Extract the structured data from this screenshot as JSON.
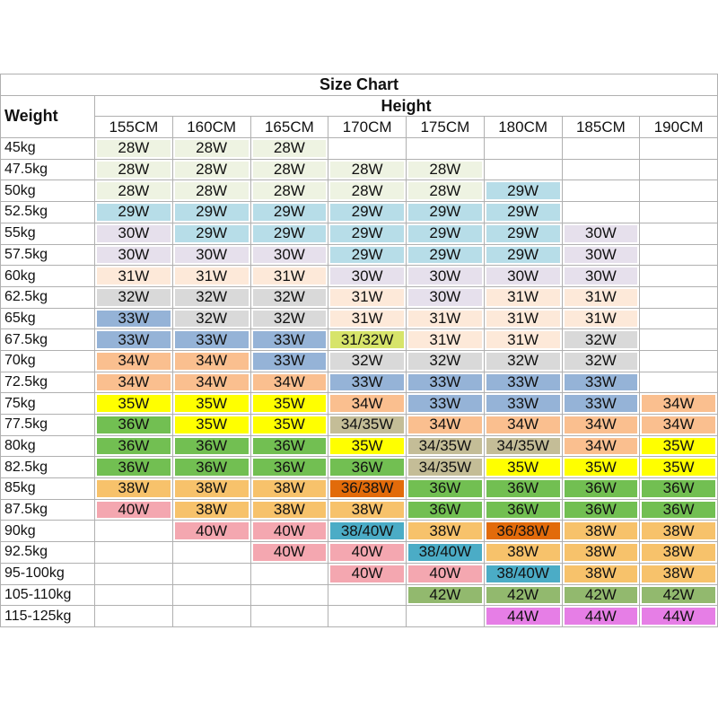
{
  "title": "Size Chart",
  "row_header": "Weight",
  "column_group": "Height",
  "columns": [
    "155CM",
    "160CM",
    "165CM",
    "170CM",
    "175CM",
    "180CM",
    "185CM",
    "190CM"
  ],
  "rows": [
    {
      "label": "45kg",
      "cells": [
        "28W",
        "28W",
        "28W",
        null,
        null,
        null,
        null,
        null
      ],
      "colors": [
        "#eef3e2",
        "#eef3e2",
        "#eef3e2",
        null,
        null,
        null,
        null,
        null
      ]
    },
    {
      "label": "47.5kg",
      "cells": [
        "28W",
        "28W",
        "28W",
        "28W",
        "28W",
        null,
        null,
        null
      ],
      "colors": [
        "#eef3e2",
        "#eef3e2",
        "#eef3e2",
        "#eef3e2",
        "#eef3e2",
        null,
        null,
        null
      ]
    },
    {
      "label": "50kg",
      "cells": [
        "28W",
        "28W",
        "28W",
        "28W",
        "28W",
        "29W",
        null,
        null
      ],
      "colors": [
        "#eef3e2",
        "#eef3e2",
        "#eef3e2",
        "#eef3e2",
        "#eef3e2",
        "#b7dde8",
        null,
        null
      ]
    },
    {
      "label": "52.5kg",
      "cells": [
        "29W",
        "29W",
        "29W",
        "29W",
        "29W",
        "29W",
        null,
        null
      ],
      "colors": [
        "#b7dde8",
        "#b7dde8",
        "#b7dde8",
        "#b7dde8",
        "#b7dde8",
        "#b7dde8",
        null,
        null
      ]
    },
    {
      "label": "55kg",
      "cells": [
        "30W",
        "29W",
        "29W",
        "29W",
        "29W",
        "29W",
        "30W",
        null
      ],
      "colors": [
        "#e6e0ec",
        "#b7dde8",
        "#b7dde8",
        "#b7dde8",
        "#b7dde8",
        "#b7dde8",
        "#e6e0ec",
        null
      ]
    },
    {
      "label": "57.5kg",
      "cells": [
        "30W",
        "30W",
        "30W",
        "29W",
        "29W",
        "29W",
        "30W",
        null
      ],
      "colors": [
        "#e6e0ec",
        "#e6e0ec",
        "#e6e0ec",
        "#b7dde8",
        "#b7dde8",
        "#b7dde8",
        "#e6e0ec",
        null
      ]
    },
    {
      "label": "60kg",
      "cells": [
        "31W",
        "31W",
        "31W",
        "30W",
        "30W",
        "30W",
        "30W",
        null
      ],
      "colors": [
        "#fde9d9",
        "#fde9d9",
        "#fde9d9",
        "#e6e0ec",
        "#e6e0ec",
        "#e6e0ec",
        "#e6e0ec",
        null
      ]
    },
    {
      "label": "62.5kg",
      "cells": [
        "32W",
        "32W",
        "32W",
        "31W",
        "30W",
        "31W",
        "31W",
        null
      ],
      "colors": [
        "#d9d9d9",
        "#d9d9d9",
        "#d9d9d9",
        "#fde9d9",
        "#e6e0ec",
        "#fde9d9",
        "#fde9d9",
        null
      ]
    },
    {
      "label": "65kg",
      "cells": [
        "33W",
        "32W",
        "32W",
        "31W",
        "31W",
        "31W",
        "31W",
        null
      ],
      "colors": [
        "#95b3d7",
        "#d9d9d9",
        "#d9d9d9",
        "#fde9d9",
        "#fde9d9",
        "#fde9d9",
        "#fde9d9",
        null
      ]
    },
    {
      "label": "67.5kg",
      "cells": [
        "33W",
        "33W",
        "33W",
        "31/32W",
        "31W",
        "31W",
        "32W",
        null
      ],
      "colors": [
        "#95b3d7",
        "#95b3d7",
        "#95b3d7",
        "#d7e46a",
        "#fde9d9",
        "#fde9d9",
        "#d9d9d9",
        null
      ]
    },
    {
      "label": "70kg",
      "cells": [
        "34W",
        "34W",
        "33W",
        "32W",
        "32W",
        "32W",
        "32W",
        null
      ],
      "colors": [
        "#fabf8f",
        "#fabf8f",
        "#95b3d7",
        "#d9d9d9",
        "#d9d9d9",
        "#d9d9d9",
        "#d9d9d9",
        null
      ]
    },
    {
      "label": "72.5kg",
      "cells": [
        "34W",
        "34W",
        "34W",
        "33W",
        "33W",
        "33W",
        "33W",
        null
      ],
      "colors": [
        "#fabf8f",
        "#fabf8f",
        "#fabf8f",
        "#95b3d7",
        "#95b3d7",
        "#95b3d7",
        "#95b3d7",
        null
      ]
    },
    {
      "label": "75kg",
      "cells": [
        "35W",
        "35W",
        "35W",
        "34W",
        "33W",
        "33W",
        "33W",
        "34W"
      ],
      "colors": [
        "#ffff00",
        "#ffff00",
        "#ffff00",
        "#fabf8f",
        "#95b3d7",
        "#95b3d7",
        "#95b3d7",
        "#fabf8f"
      ]
    },
    {
      "label": "77.5kg",
      "cells": [
        "36W",
        "35W",
        "35W",
        "34/35W",
        "34W",
        "34W",
        "34W",
        "34W"
      ],
      "colors": [
        "#72bf52",
        "#ffff00",
        "#ffff00",
        "#c4bd97",
        "#fabf8f",
        "#fabf8f",
        "#fabf8f",
        "#fabf8f"
      ]
    },
    {
      "label": "80kg",
      "cells": [
        "36W",
        "36W",
        "36W",
        "35W",
        "34/35W",
        "34/35W",
        "34W",
        "35W"
      ],
      "colors": [
        "#72bf52",
        "#72bf52",
        "#72bf52",
        "#ffff00",
        "#c4bd97",
        "#c4bd97",
        "#fabf8f",
        "#ffff00"
      ]
    },
    {
      "label": "82.5kg",
      "cells": [
        "36W",
        "36W",
        "36W",
        "36W",
        "34/35W",
        "35W",
        "35W",
        "35W"
      ],
      "colors": [
        "#72bf52",
        "#72bf52",
        "#72bf52",
        "#72bf52",
        "#c4bd97",
        "#ffff00",
        "#ffff00",
        "#ffff00"
      ]
    },
    {
      "label": "85kg",
      "cells": [
        "38W",
        "38W",
        "38W",
        "36/38W",
        "36W",
        "36W",
        "36W",
        "36W"
      ],
      "colors": [
        "#f7c26b",
        "#f7c26b",
        "#f7c26b",
        "#e26b0a",
        "#72bf52",
        "#72bf52",
        "#72bf52",
        "#72bf52"
      ]
    },
    {
      "label": "87.5kg",
      "cells": [
        "40W",
        "38W",
        "38W",
        "38W",
        "36W",
        "36W",
        "36W",
        "36W"
      ],
      "colors": [
        "#f4a7b0",
        "#f7c26b",
        "#f7c26b",
        "#f7c26b",
        "#72bf52",
        "#72bf52",
        "#72bf52",
        "#72bf52"
      ]
    },
    {
      "label": "90kg",
      "cells": [
        null,
        "40W",
        "40W",
        "38/40W",
        "38W",
        "36/38W",
        "38W",
        "38W"
      ],
      "colors": [
        null,
        "#f4a7b0",
        "#f4a7b0",
        "#4bacc6",
        "#f7c26b",
        "#e26b0a",
        "#f7c26b",
        "#f7c26b"
      ]
    },
    {
      "label": "92.5kg",
      "cells": [
        null,
        null,
        "40W",
        "40W",
        "38/40W",
        "38W",
        "38W",
        "38W"
      ],
      "colors": [
        null,
        null,
        "#f4a7b0",
        "#f4a7b0",
        "#4bacc6",
        "#f7c26b",
        "#f7c26b",
        "#f7c26b"
      ]
    },
    {
      "label": "95-100kg",
      "cells": [
        null,
        null,
        null,
        "40W",
        "40W",
        "38/40W",
        "38W",
        "38W"
      ],
      "colors": [
        null,
        null,
        null,
        "#f4a7b0",
        "#f4a7b0",
        "#4bacc6",
        "#f7c26b",
        "#f7c26b"
      ]
    },
    {
      "label": "105-110kg",
      "cells": [
        null,
        null,
        null,
        null,
        "42W",
        "42W",
        "42W",
        "42W"
      ],
      "colors": [
        null,
        null,
        null,
        null,
        "#92b96e",
        "#92b96e",
        "#92b96e",
        "#92b96e"
      ]
    },
    {
      "label": "115-125kg",
      "cells": [
        null,
        null,
        null,
        null,
        null,
        "44W",
        "44W",
        "44W"
      ],
      "colors": [
        null,
        null,
        null,
        null,
        null,
        "#e67ee6",
        "#e67ee6",
        "#e67ee6"
      ]
    }
  ]
}
